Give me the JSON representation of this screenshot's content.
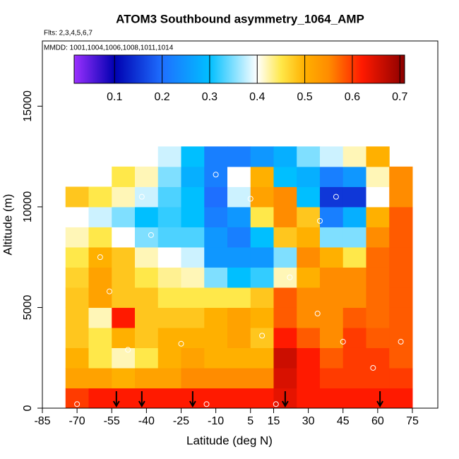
{
  "chart_data": {
    "type": "heatmap",
    "title": "ATOM3 Southbound asymmetry_1064_AMP",
    "subtitle": "Flts: 2,3,4,5,6,7",
    "annotation": "MMDD: 1001,1004,1006,1008,1011,1014",
    "xlabel": "Latitude (deg N)",
    "ylabel": "Altitude (m)",
    "xlim": [
      -85,
      86
    ],
    "ylim": [
      0,
      18240
    ],
    "xticks": [
      -85,
      -70,
      -55,
      -40,
      -25,
      -10,
      5,
      15,
      30,
      45,
      60,
      75
    ],
    "yticks": [
      0,
      5000,
      10000,
      15000
    ],
    "x": [
      -70,
      -60,
      -50,
      -40,
      -30,
      -20,
      -10,
      0,
      10,
      20,
      30,
      40,
      50,
      60,
      70
    ],
    "x_step": 10,
    "y": [
      500,
      1500,
      2500,
      3500,
      4500,
      5500,
      6500,
      7500,
      8500,
      9500,
      10500,
      11500,
      12500
    ],
    "y_step": 1000,
    "z": [
      [
        0.6,
        0.62,
        0.62,
        0.62,
        0.62,
        0.62,
        0.62,
        0.62,
        0.62,
        0.64,
        0.62,
        0.62,
        0.62,
        0.62,
        0.62
      ],
      [
        0.52,
        0.52,
        0.5,
        0.52,
        0.52,
        0.55,
        0.55,
        0.55,
        0.55,
        0.65,
        0.62,
        0.6,
        0.6,
        0.6,
        0.6
      ],
      [
        0.5,
        0.45,
        0.42,
        0.45,
        0.5,
        0.52,
        0.5,
        0.5,
        0.5,
        0.66,
        0.62,
        0.58,
        0.6,
        0.6,
        0.58
      ],
      [
        0.48,
        0.45,
        0.5,
        0.48,
        0.5,
        0.5,
        0.5,
        0.52,
        0.48,
        0.62,
        0.58,
        0.55,
        0.6,
        0.58,
        0.58
      ],
      [
        0.48,
        0.42,
        0.62,
        0.48,
        0.48,
        0.48,
        0.5,
        0.52,
        0.5,
        0.58,
        0.55,
        0.55,
        0.58,
        0.57,
        0.58
      ],
      [
        0.48,
        0.52,
        0.48,
        0.48,
        0.45,
        0.45,
        0.45,
        0.45,
        0.48,
        0.58,
        0.55,
        0.55,
        0.55,
        0.57,
        0.58
      ],
      [
        0.47,
        0.52,
        0.48,
        0.45,
        0.43,
        0.42,
        0.35,
        0.3,
        0.32,
        0.42,
        0.5,
        0.55,
        0.55,
        0.57,
        0.58
      ],
      [
        0.45,
        0.5,
        0.48,
        0.42,
        0.4,
        0.38,
        0.25,
        0.25,
        0.25,
        0.35,
        0.55,
        0.5,
        0.45,
        0.57,
        0.58
      ],
      [
        0.42,
        0.45,
        0.4,
        0.35,
        0.33,
        0.33,
        0.25,
        0.22,
        0.3,
        0.48,
        0.5,
        0.35,
        0.35,
        0.55,
        0.58
      ],
      [
        0.4,
        0.38,
        0.35,
        0.3,
        0.32,
        0.3,
        0.22,
        0.25,
        0.45,
        0.55,
        0.48,
        0.22,
        0.28,
        0.5,
        0.58
      ],
      [
        0.48,
        0.45,
        0.42,
        0.38,
        0.33,
        0.3,
        0.2,
        0.38,
        0.52,
        0.55,
        0.3,
        0.15,
        0.15,
        0.4,
        0.55
      ],
      [
        null,
        null,
        0.45,
        0.42,
        0.35,
        0.28,
        0.22,
        0.4,
        0.5,
        0.3,
        0.28,
        0.22,
        0.25,
        0.42,
        0.55
      ],
      [
        null,
        null,
        null,
        null,
        0.38,
        0.3,
        0.22,
        0.22,
        0.25,
        0.28,
        0.35,
        0.38,
        0.42,
        0.5,
        null
      ]
    ],
    "colorbar_lim": [
      0.015,
      0.71
    ],
    "colorbar_ticks": [
      0.1,
      0.2,
      0.3,
      0.4,
      0.5,
      0.6,
      0.7
    ],
    "colorscale": [
      [
        0.015,
        "#9b30ff"
      ],
      [
        0.1,
        "#0000b0"
      ],
      [
        0.2,
        "#1e6fff"
      ],
      [
        0.3,
        "#00bfff"
      ],
      [
        0.4,
        "#ffffff"
      ],
      [
        0.45,
        "#ffe84a"
      ],
      [
        0.5,
        "#ffb000"
      ],
      [
        0.55,
        "#ff8c00"
      ],
      [
        0.62,
        "#ff1a00"
      ],
      [
        0.71,
        "#8b0000"
      ]
    ],
    "points": {
      "x": [
        -70,
        -56,
        -48,
        -42,
        -38,
        -10,
        10,
        22,
        34,
        45,
        -60,
        35,
        58,
        70,
        -25,
        5,
        42,
        -14,
        16
      ],
      "y": [
        200,
        5800,
        2900,
        10500,
        8600,
        11600,
        3600,
        6500,
        4700,
        3300,
        7500,
        9300,
        2000,
        3300,
        3200,
        10400,
        10500,
        200,
        200
      ]
    },
    "arrows": [
      -53,
      -42,
      -20,
      20,
      61
    ]
  }
}
